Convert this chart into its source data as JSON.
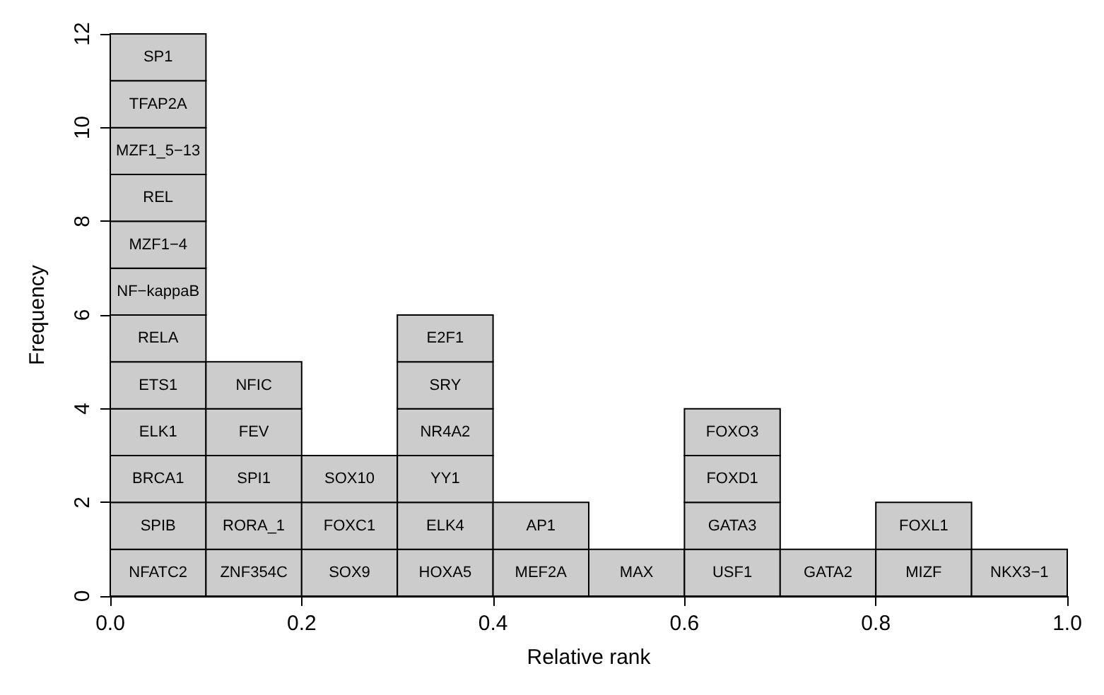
{
  "chart_data": {
    "type": "bar",
    "xlabel": "Relative rank",
    "ylabel": "Frequency",
    "x": [
      0.05,
      0.15,
      0.25,
      0.35,
      0.45,
      0.55,
      0.65,
      0.75,
      0.85,
      0.95
    ],
    "stacked": true,
    "series": [
      {
        "color": "#cccccc",
        "values": [
          1,
          1,
          1,
          1,
          1,
          1,
          1,
          1,
          1,
          1
        ],
        "value_labels": [
          "NFATC2",
          "ZNF354C",
          "SOX9",
          "HOXA5",
          "MEF2A",
          "MAX",
          "USF1",
          "GATA2",
          "MIZF",
          "NKX3−1"
        ]
      },
      {
        "color": "#cccccc",
        "values": [
          1,
          1,
          1,
          1,
          1,
          null,
          1,
          null,
          1,
          null
        ],
        "value_labels": [
          "SPIB",
          "RORA_1",
          "FOXC1",
          "ELK4",
          "AP1",
          null,
          "GATA3",
          null,
          "FOXL1",
          null
        ]
      },
      {
        "color": "#cccccc",
        "values": [
          1,
          1,
          1,
          1,
          null,
          null,
          1,
          null,
          null,
          null
        ],
        "value_labels": [
          "BRCA1",
          "SPI1",
          "SOX10",
          "YY1",
          null,
          null,
          "FOXD1",
          null,
          null,
          null
        ]
      },
      {
        "color": "#cccccc",
        "values": [
          1,
          1,
          null,
          1,
          null,
          null,
          1,
          null,
          null,
          null
        ],
        "value_labels": [
          "ELK1",
          "FEV",
          null,
          "NR4A2",
          null,
          null,
          "FOXO3",
          null,
          null,
          null
        ]
      },
      {
        "color": "#cccccc",
        "values": [
          1,
          1,
          null,
          1,
          null,
          null,
          null,
          null,
          null,
          null
        ],
        "value_labels": [
          "ETS1",
          "NFIC",
          null,
          "SRY",
          null,
          null,
          null,
          null,
          null,
          null
        ]
      },
      {
        "color": "#cccccc",
        "values": [
          1,
          null,
          null,
          1,
          null,
          null,
          null,
          null,
          null,
          null
        ],
        "value_labels": [
          "RELA",
          null,
          null,
          "E2F1",
          null,
          null,
          null,
          null,
          null,
          null
        ]
      },
      {
        "color": "#cccccc",
        "values": [
          1,
          null,
          null,
          null,
          null,
          null,
          null,
          null,
          null,
          null
        ],
        "value_labels": [
          "NF−kappaB",
          null,
          null,
          null,
          null,
          null,
          null,
          null,
          null,
          null
        ]
      },
      {
        "color": "#cccccc",
        "values": [
          1,
          null,
          null,
          null,
          null,
          null,
          null,
          null,
          null,
          null
        ],
        "value_labels": [
          "MZF1−4",
          null,
          null,
          null,
          null,
          null,
          null,
          null,
          null,
          null
        ]
      },
      {
        "color": "#cccccc",
        "values": [
          1,
          null,
          null,
          null,
          null,
          null,
          null,
          null,
          null,
          null
        ],
        "value_labels": [
          "REL",
          null,
          null,
          null,
          null,
          null,
          null,
          null,
          null,
          null
        ]
      },
      {
        "color": "#cccccc",
        "values": [
          1,
          null,
          null,
          null,
          null,
          null,
          null,
          null,
          null,
          null
        ],
        "value_labels": [
          "MZF1_5−13",
          null,
          null,
          null,
          null,
          null,
          null,
          null,
          null,
          null
        ]
      },
      {
        "color": "#cccccc",
        "values": [
          1,
          null,
          null,
          null,
          null,
          null,
          null,
          null,
          null,
          null
        ],
        "value_labels": [
          "TFAP2A",
          null,
          null,
          null,
          null,
          null,
          null,
          null,
          null,
          null
        ]
      },
      {
        "color": "#cccccc",
        "values": [
          1,
          null,
          null,
          null,
          null,
          null,
          null,
          null,
          null,
          null
        ],
        "value_labels": [
          "SP1",
          null,
          null,
          null,
          null,
          null,
          null,
          null,
          null,
          null
        ]
      }
    ],
    "xlim": [
      0,
      1
    ],
    "xticks": [
      {
        "value": 0,
        "label": "0.0"
      },
      {
        "value": 0.2,
        "label": "0.2"
      },
      {
        "value": 0.4,
        "label": "0.4"
      },
      {
        "value": 0.6,
        "label": "0.6"
      },
      {
        "value": 0.8,
        "label": "0.8"
      },
      {
        "value": 1,
        "label": "1.0"
      }
    ],
    "ylim": [
      0,
      12
    ],
    "yticks": [
      0,
      2,
      4,
      6,
      8,
      10,
      12
    ],
    "grid": false
  }
}
